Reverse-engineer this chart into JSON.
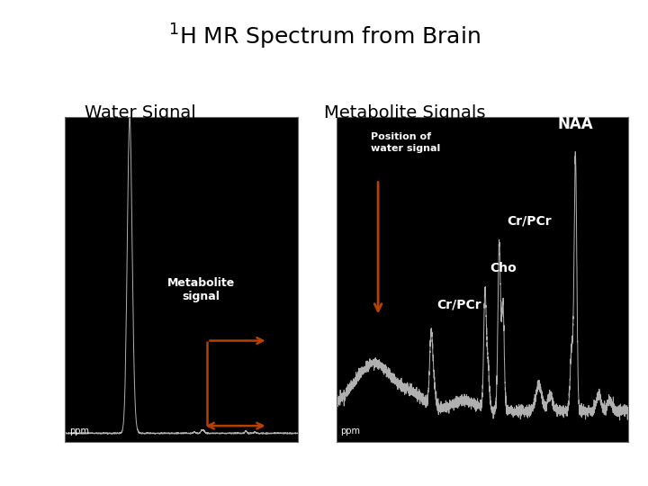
{
  "title": "$^{1}$H MR Spectrum from Brain",
  "title_fontsize": 18,
  "water_label": "Water Signal",
  "metabolite_label": "Metabolite Signals",
  "sublabel_fontsize": 14,
  "bg_color": "#000000",
  "fig_bg": "#ffffff",
  "signal_color": "#b0b0b0",
  "arrow_color": "#b84000",
  "water_xlim": [
    6.2,
    0.8
  ],
  "water_ylim": [
    -30,
    1060
  ],
  "water_yticks": [
    0,
    200,
    400,
    600,
    800,
    1000
  ],
  "water_xticks": [
    6,
    5,
    4,
    3,
    2,
    1
  ],
  "met_xlim": [
    5.2,
    1.3
  ],
  "met_ylim": [
    -3,
    28
  ],
  "met_yticks": [
    0,
    5,
    10,
    15,
    20,
    25
  ],
  "met_xticks": [
    5.0,
    4.5,
    4.0,
    3.5,
    3.0,
    2.5,
    2.0,
    1.5
  ],
  "annotation_color": "#ffffff",
  "annotation_fontsize": 10,
  "tick_fontsize": 7,
  "ppm_fontsize": 7
}
